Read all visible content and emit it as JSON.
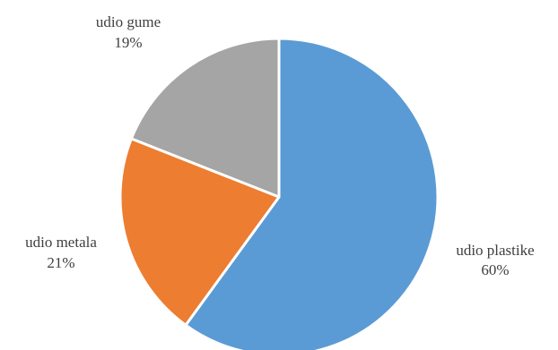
{
  "chart_data": {
    "type": "pie",
    "title": "",
    "slices": [
      {
        "label": "udio plastike",
        "value": 60,
        "value_label": "60%",
        "color": "#5b9bd5"
      },
      {
        "label": "udio metala",
        "value": 21,
        "value_label": "21%",
        "color": "#ed7d31"
      },
      {
        "label": "udio gume",
        "value": 19,
        "value_label": "19%",
        "color": "#a5a5a5"
      }
    ],
    "start_angle_deg": 0,
    "direction": "clockwise",
    "legend": "none",
    "data_labels": "outside"
  }
}
